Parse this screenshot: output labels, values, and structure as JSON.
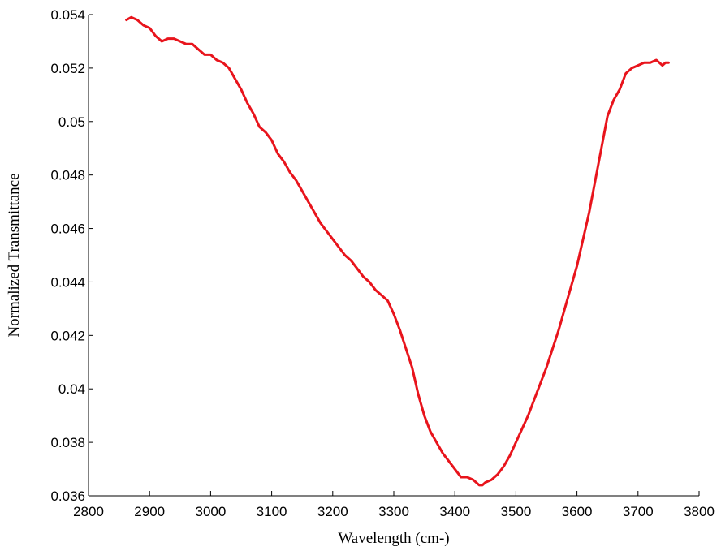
{
  "chart_data": {
    "type": "line",
    "title": "",
    "xlabel": "Wavelength (cm-)",
    "ylabel": "Normalized Transmittance",
    "xlim": [
      2800,
      3800
    ],
    "ylim": [
      0.036,
      0.054
    ],
    "xticks": [
      2800,
      2900,
      3000,
      3100,
      3200,
      3300,
      3400,
      3500,
      3600,
      3700,
      3800
    ],
    "xtick_labels": [
      "2800",
      "2900",
      "3000",
      "3100",
      "3200",
      "3300",
      "3400",
      "3500",
      "3600",
      "3700",
      "3800"
    ],
    "yticks": [
      0.036,
      0.038,
      0.04,
      0.042,
      0.044,
      0.046,
      0.048,
      0.05,
      0.052,
      0.054
    ],
    "ytick_labels": [
      "0.036",
      "0.038",
      "0.04",
      "0.042",
      "0.044",
      "0.046",
      "0.048",
      "0.05",
      "0.052",
      "0.054"
    ],
    "grid": false,
    "legend": "none",
    "series": [
      {
        "color": "#e8141c",
        "x": [
          2862,
          2870,
          2880,
          2890,
          2900,
          2910,
          2920,
          2930,
          2940,
          2950,
          2960,
          2970,
          2980,
          2990,
          3000,
          3010,
          3020,
          3030,
          3040,
          3050,
          3060,
          3070,
          3080,
          3090,
          3100,
          3110,
          3120,
          3130,
          3140,
          3150,
          3160,
          3170,
          3180,
          3190,
          3200,
          3210,
          3220,
          3230,
          3240,
          3250,
          3260,
          3270,
          3280,
          3290,
          3300,
          3310,
          3320,
          3330,
          3340,
          3350,
          3360,
          3370,
          3380,
          3390,
          3400,
          3410,
          3420,
          3430,
          3440,
          3445,
          3450,
          3460,
          3470,
          3480,
          3490,
          3500,
          3510,
          3520,
          3530,
          3540,
          3550,
          3560,
          3570,
          3580,
          3590,
          3600,
          3610,
          3620,
          3630,
          3640,
          3650,
          3660,
          3670,
          3680,
          3690,
          3700,
          3710,
          3720,
          3730,
          3735,
          3740,
          3745,
          3750
        ],
        "y": [
          0.0538,
          0.0539,
          0.0538,
          0.0536,
          0.0535,
          0.0532,
          0.053,
          0.0531,
          0.0531,
          0.053,
          0.0529,
          0.0529,
          0.0527,
          0.0525,
          0.0525,
          0.0523,
          0.0522,
          0.052,
          0.0516,
          0.0512,
          0.0507,
          0.0503,
          0.0498,
          0.0496,
          0.0493,
          0.0488,
          0.0485,
          0.0481,
          0.0478,
          0.0474,
          0.047,
          0.0466,
          0.0462,
          0.0459,
          0.0456,
          0.0453,
          0.045,
          0.0448,
          0.0445,
          0.0442,
          0.044,
          0.0437,
          0.0435,
          0.0433,
          0.0428,
          0.0422,
          0.0415,
          0.0408,
          0.0398,
          0.039,
          0.0384,
          0.038,
          0.0376,
          0.0373,
          0.037,
          0.0367,
          0.0367,
          0.0366,
          0.0364,
          0.0364,
          0.0365,
          0.0366,
          0.0368,
          0.0371,
          0.0375,
          0.038,
          0.0385,
          0.039,
          0.0396,
          0.0402,
          0.0408,
          0.0415,
          0.0422,
          0.043,
          0.0438,
          0.0446,
          0.0456,
          0.0466,
          0.0478,
          0.049,
          0.0502,
          0.0508,
          0.0512,
          0.0518,
          0.052,
          0.0521,
          0.0522,
          0.0522,
          0.0523,
          0.0522,
          0.0521,
          0.0522,
          0.0522
        ]
      }
    ]
  }
}
